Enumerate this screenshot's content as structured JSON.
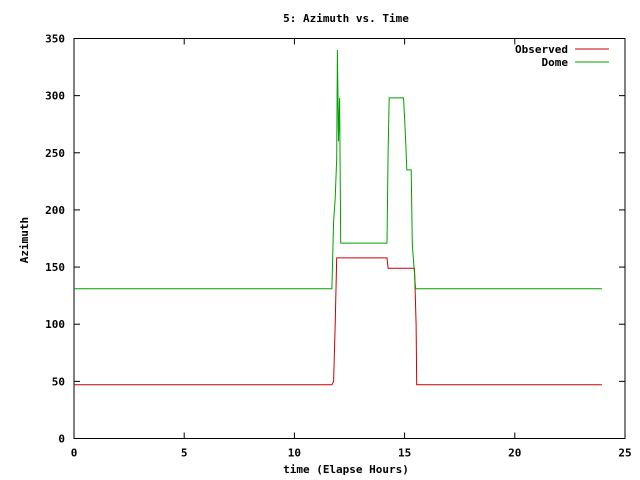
{
  "chart_data": {
    "type": "line",
    "title": "5: Azimuth vs. Time",
    "xlabel": "time (Elapse Hours)",
    "ylabel": "Azimuth",
    "xlim": [
      0,
      25
    ],
    "ylim": [
      0,
      350
    ],
    "xticks": [
      0,
      5,
      10,
      15,
      20,
      25
    ],
    "yticks": [
      0,
      50,
      100,
      150,
      200,
      250,
      300,
      350
    ],
    "grid": false,
    "legend_position": "top-right",
    "series": [
      {
        "name": "Observed",
        "color": "#cc0000",
        "x": [
          0,
          11.7,
          11.78,
          11.85,
          11.92,
          14.2,
          14.25,
          15.45,
          15.52,
          15.55,
          23.95
        ],
        "y": [
          47,
          47,
          50,
          100,
          158,
          158,
          149,
          149,
          100,
          47,
          47
        ]
      },
      {
        "name": "Dome",
        "color": "#00a000",
        "x": [
          0,
          11.7,
          11.78,
          11.85,
          11.92,
          11.95,
          12.0,
          12.05,
          12.1,
          14.2,
          14.25,
          14.3,
          14.95,
          15.0,
          15.05,
          15.1,
          15.3,
          15.35,
          15.5,
          23.95
        ],
        "y": [
          131,
          131,
          190,
          210,
          245,
          340,
          260,
          298,
          171,
          171,
          250,
          298,
          298,
          280,
          260,
          235,
          235,
          170,
          131,
          131
        ]
      }
    ]
  }
}
